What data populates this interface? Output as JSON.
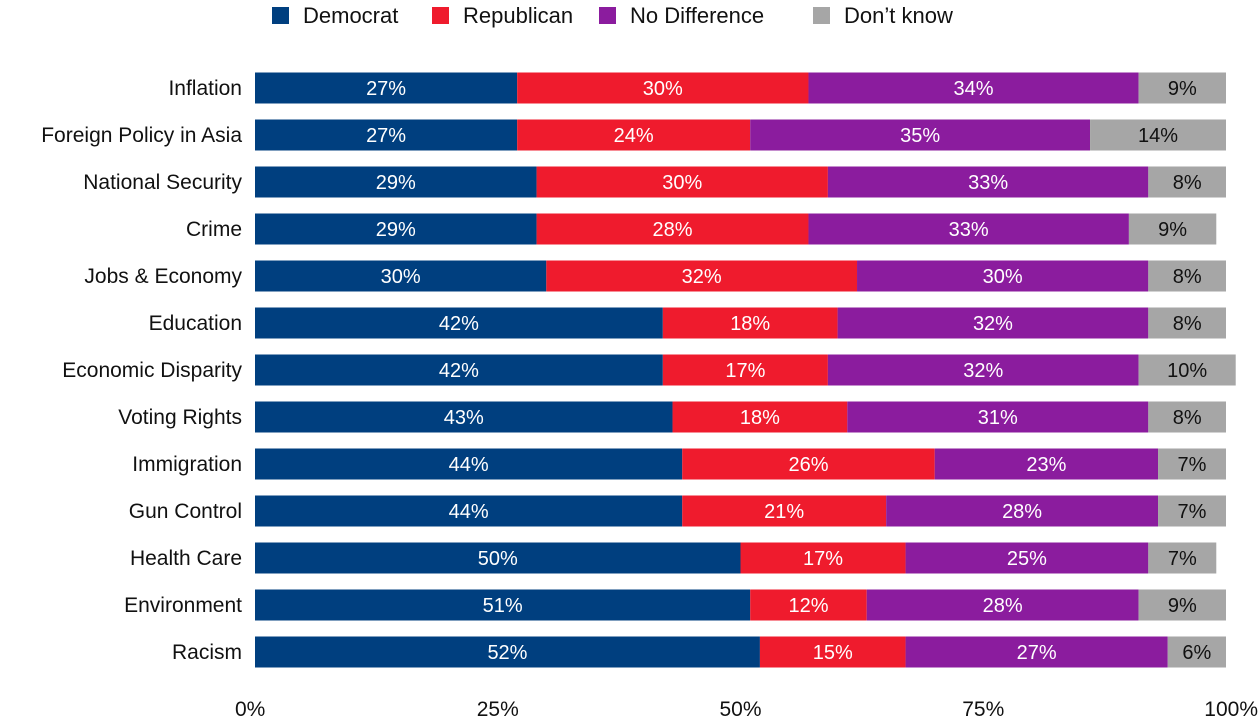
{
  "chart_data": {
    "type": "bar",
    "orientation": "horizontal",
    "stacked": true,
    "legend_position": "top",
    "grid": false,
    "xlim": [
      0,
      100
    ],
    "x_ticks": [
      "0%",
      "25%",
      "50%",
      "75%",
      "100%"
    ],
    "categories": [
      "Inflation",
      "Foreign Policy in Asia",
      "National Security",
      "Crime",
      "Jobs & Economy",
      "Education",
      "Economic Disparity",
      "Voting Rights",
      "Immigration",
      "Gun Control",
      "Health Care",
      "Environment",
      "Racism"
    ],
    "series": [
      {
        "name": "Democrat",
        "color": "#003f7f",
        "label_color": "#ffffff",
        "values": [
          27,
          27,
          29,
          29,
          30,
          42,
          42,
          43,
          44,
          44,
          50,
          51,
          52
        ]
      },
      {
        "name": "Republican",
        "color": "#ef1b2d",
        "label_color": "#ffffff",
        "values": [
          30,
          24,
          30,
          28,
          32,
          18,
          17,
          18,
          26,
          21,
          17,
          12,
          15
        ]
      },
      {
        "name": "No Difference",
        "color": "#8b1c9e",
        "label_color": "#ffffff",
        "values": [
          34,
          35,
          33,
          33,
          30,
          32,
          32,
          31,
          23,
          28,
          25,
          28,
          27
        ]
      },
      {
        "name": "Don’t know",
        "color": "#a6a6a6",
        "label_color": "#111111",
        "values": [
          9,
          14,
          8,
          9,
          8,
          8,
          10,
          8,
          7,
          7,
          7,
          9,
          6
        ]
      }
    ]
  }
}
